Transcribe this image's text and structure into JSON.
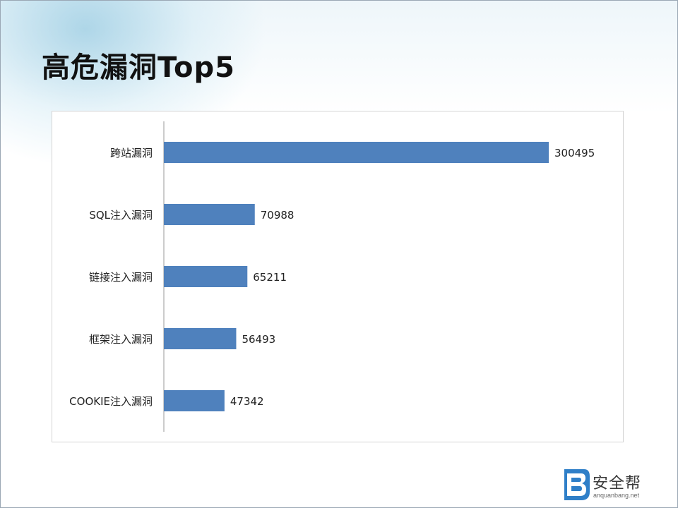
{
  "slide": {
    "title": "高危漏洞Top5"
  },
  "logo": {
    "name": "安全帮",
    "url": "anquanbang.net",
    "mark": "B",
    "color": "#2f7fc8"
  },
  "chart_data": {
    "type": "bar",
    "orientation": "horizontal",
    "categories": [
      "跨站漏洞",
      "SQL注入漏洞",
      "链接注入漏洞",
      "框架注入漏洞",
      "COOKIE注入漏洞"
    ],
    "values": [
      300495,
      70988,
      65211,
      56493,
      47342
    ],
    "bar_color": "#4f81bd",
    "data_labels": true,
    "xlim": [
      0,
      300495
    ],
    "grid": false,
    "legend": "none"
  }
}
